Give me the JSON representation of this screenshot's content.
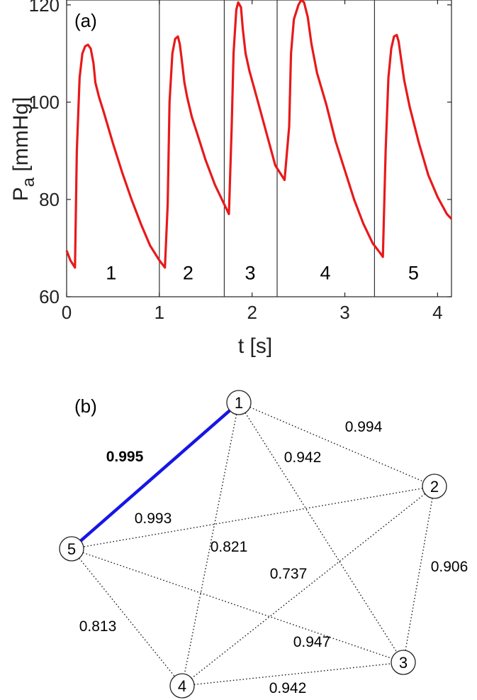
{
  "chart_data": [
    {
      "type": "line",
      "panel_label": "(a)",
      "xlabel": "t [s]",
      "ylabel": "P",
      "ylabel_sub": "a",
      "ylabel_unit": " [mmHg]",
      "xlim": [
        0,
        4.15
      ],
      "ylim": [
        60,
        121
      ],
      "xticks": [
        0,
        1,
        2,
        3,
        4
      ],
      "yticks": [
        60,
        80,
        100,
        120
      ],
      "grid": false,
      "line_color": "#e8191a",
      "separators": [
        1.0,
        1.7,
        2.27,
        3.32
      ],
      "beat_labels": [
        {
          "text": "1",
          "x": 0.48
        },
        {
          "text": "2",
          "x": 1.31
        },
        {
          "text": "3",
          "x": 1.98
        },
        {
          "text": "4",
          "x": 2.79
        },
        {
          "text": "5",
          "x": 3.74
        }
      ],
      "beat_label_y": 65.0,
      "series": [
        {
          "x": [
            0.0,
            0.04,
            0.09,
            0.11,
            0.14,
            0.17,
            0.2,
            0.23,
            0.26,
            0.29,
            0.31,
            0.35,
            0.4,
            0.5,
            0.6,
            0.7,
            0.8,
            0.9,
            1.0,
            1.06,
            1.09,
            1.11,
            1.14,
            1.17,
            1.2,
            1.22,
            1.24,
            1.27,
            1.3,
            1.35,
            1.4,
            1.5,
            1.6,
            1.7,
            1.75,
            1.78,
            1.8,
            1.83,
            1.85,
            1.88,
            1.9,
            1.93,
            1.97,
            2.05,
            2.15,
            2.25,
            2.35,
            2.4,
            2.42,
            2.45,
            2.5,
            2.53,
            2.56,
            2.6,
            2.64,
            2.7,
            2.8,
            2.9,
            3.0,
            3.1,
            3.2,
            3.3,
            3.38,
            3.41,
            3.44,
            3.47,
            3.5,
            3.53,
            3.56,
            3.58,
            3.61,
            3.64,
            3.7,
            3.8,
            3.9,
            4.0,
            4.1,
            4.15
          ],
          "y": [
            69.5,
            67.5,
            66.0,
            90.0,
            105.0,
            110.0,
            111.5,
            111.8,
            111.0,
            108.0,
            104.0,
            101.0,
            98.0,
            91.5,
            85.5,
            80.0,
            75.0,
            70.5,
            67.5,
            66.0,
            79.0,
            100.0,
            110.0,
            113.0,
            113.5,
            112.0,
            109.0,
            104.0,
            101.0,
            97.0,
            94.0,
            88.0,
            83.0,
            79.0,
            77.0,
            95.0,
            110.0,
            119.0,
            120.5,
            119.5,
            115.0,
            110.0,
            106.5,
            101.0,
            94.0,
            87.0,
            84.0,
            95.0,
            110.0,
            117.0,
            120.0,
            121.0,
            120.5,
            117.5,
            112.0,
            106.0,
            99.5,
            92.0,
            86.0,
            80.0,
            75.0,
            71.0,
            69.0,
            68.2,
            90.0,
            105.0,
            111.0,
            113.5,
            113.8,
            112.5,
            108.5,
            104.5,
            99.0,
            91.5,
            85.0,
            80.5,
            77.0,
            76.0
          ]
        }
      ]
    },
    {
      "type": "network",
      "panel_label": "(b)",
      "nodes": [
        {
          "id": "1",
          "label": "1"
        },
        {
          "id": "2",
          "label": "2"
        },
        {
          "id": "3",
          "label": "3"
        },
        {
          "id": "4",
          "label": "4"
        },
        {
          "id": "5",
          "label": "5"
        }
      ],
      "highlight_color": "#1616e6",
      "edges": [
        {
          "from": "1",
          "to": "5",
          "weight": "0.995",
          "highlight": true
        },
        {
          "from": "1",
          "to": "2",
          "weight": "0.994",
          "highlight": false
        },
        {
          "from": "1",
          "to": "3",
          "weight": "0.942",
          "highlight": false
        },
        {
          "from": "1",
          "to": "4",
          "weight": "0.821",
          "highlight": false
        },
        {
          "from": "2",
          "to": "5",
          "weight": "0.993",
          "highlight": false
        },
        {
          "from": "2",
          "to": "4",
          "weight": "0.737",
          "highlight": false
        },
        {
          "from": "2",
          "to": "3",
          "weight": "0.906",
          "highlight": false
        },
        {
          "from": "5",
          "to": "4",
          "weight": "0.813",
          "highlight": false
        },
        {
          "from": "5",
          "to": "3",
          "weight": "0.947",
          "highlight": false
        },
        {
          "from": "4",
          "to": "3",
          "weight": "0.942",
          "highlight": false
        }
      ]
    }
  ]
}
